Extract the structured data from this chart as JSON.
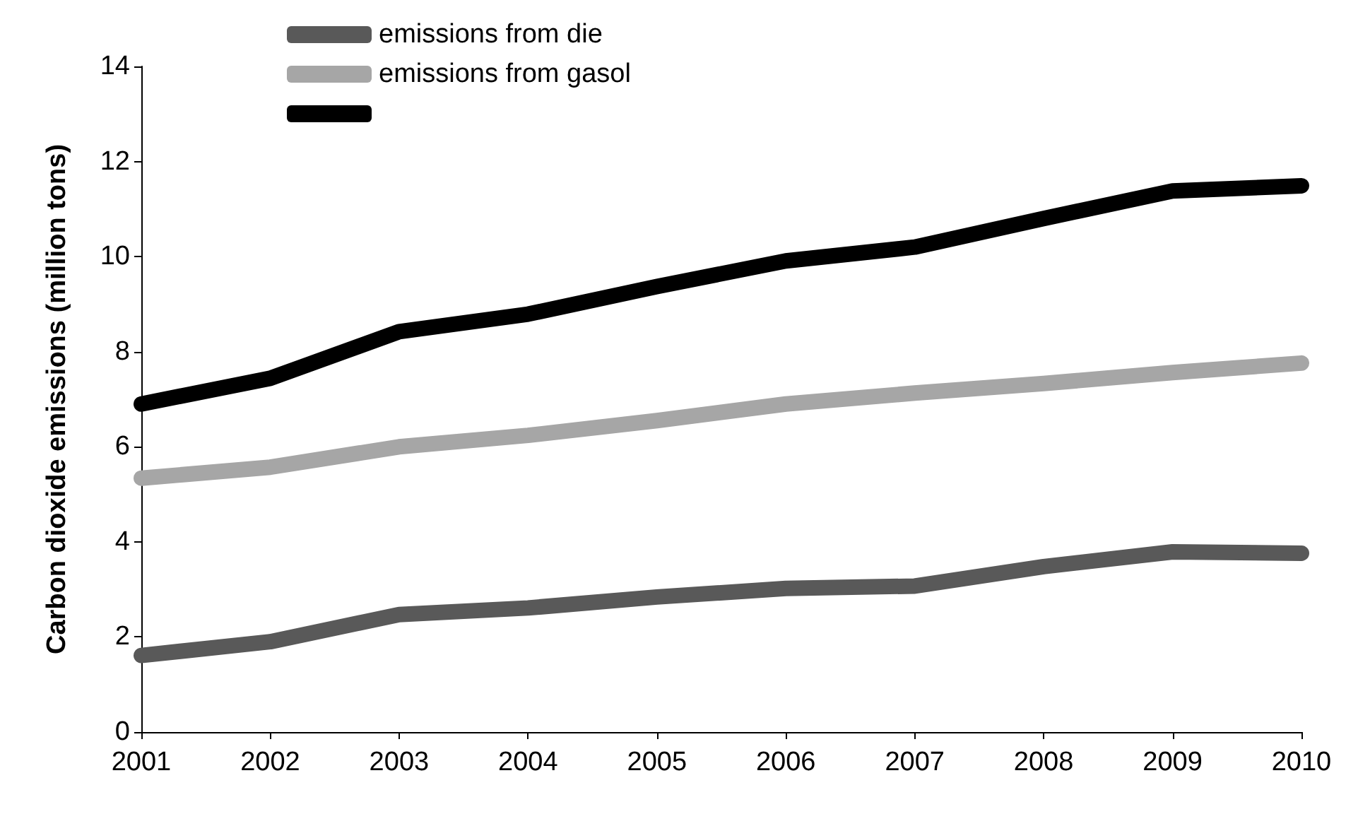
{
  "chart_data": {
    "type": "line",
    "ylabel": "Carbon dioxide emissions (million tons)",
    "categories": [
      "2001",
      "2002",
      "2003",
      "2004",
      "2005",
      "2006",
      "2007",
      "2008",
      "2009",
      "2010"
    ],
    "ylim": [
      0,
      14
    ],
    "yticks": [
      0,
      2,
      4,
      6,
      8,
      10,
      12,
      14
    ],
    "grid": false,
    "legend": "top left",
    "line_style": "solid",
    "series": [
      {
        "name": "emissions from die",
        "color": "#595959",
        "values": [
          1.61,
          1.9,
          2.47,
          2.61,
          2.84,
          3.02,
          3.07,
          3.48,
          3.79,
          3.76
        ]
      },
      {
        "name": "emissions from gasol",
        "color": "#a6a6a6",
        "values": [
          5.34,
          5.57,
          6.0,
          6.24,
          6.55,
          6.9,
          7.13,
          7.33,
          7.56,
          7.76
        ]
      },
      {
        "color": "#000000",
        "values": [
          6.9,
          7.44,
          8.42,
          8.79,
          9.37,
          9.91,
          10.2,
          10.8,
          11.38,
          11.49
        ]
      }
    ]
  }
}
